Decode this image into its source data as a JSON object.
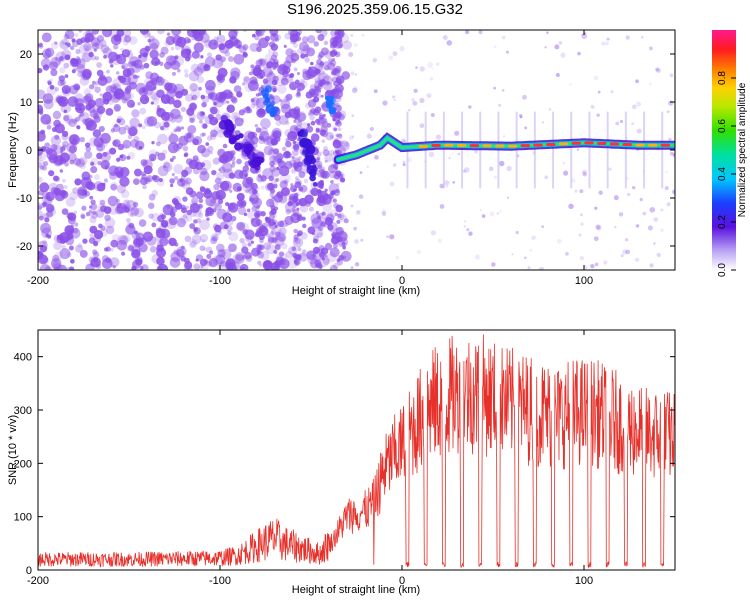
{
  "title": "S196.2025.359.06.15.G32",
  "colors": {
    "snr_line": "#e8302a",
    "axis": "#000000",
    "noise": "#8a4fe8",
    "background": "#ffffff"
  },
  "chart_data": [
    {
      "type": "heatmap",
      "title": "S196.2025.359.06.15.G32",
      "xlabel": "Height of straight line (km)",
      "ylabel": "Frequency (Hz)",
      "xlim": [
        -200,
        150
      ],
      "ylim": [
        -25,
        25
      ],
      "xticks": [
        -200,
        -100,
        0,
        100
      ],
      "yticks": [
        -20,
        -10,
        0,
        10,
        20
      ],
      "xtick_labels": [
        "-200",
        "-100",
        "0",
        "100"
      ],
      "ytick_labels": [
        "-20",
        "-10",
        "0",
        "10",
        "20"
      ],
      "colorbar": {
        "label": "Normalized spectral amplitude",
        "range": [
          0,
          1
        ],
        "ticks": [
          0.0,
          0.2,
          0.4,
          0.6,
          0.8
        ],
        "tick_labels": [
          "0.0",
          "0.2",
          "0.4",
          "0.6",
          "0.8"
        ]
      },
      "ridge": {
        "description": "strong signal track near 0 Hz",
        "points": [
          [
            -35,
            -2
          ],
          [
            -25,
            -1
          ],
          [
            -12,
            1
          ],
          [
            -8,
            2.5
          ],
          [
            0,
            0.5
          ],
          [
            20,
            1
          ],
          [
            60,
            0.8
          ],
          [
            100,
            1.5
          ],
          [
            130,
            1
          ],
          [
            150,
            1
          ]
        ]
      }
    },
    {
      "type": "line",
      "xlabel": "Height of straight line (km)",
      "ylabel": "SNR (10 * v/v)",
      "xlim": [
        -200,
        150
      ],
      "ylim": [
        0,
        450
      ],
      "xticks": [
        -200,
        -100,
        0,
        100
      ],
      "yticks": [
        0,
        100,
        200,
        300,
        400
      ],
      "xtick_labels": [
        "-200",
        "-100",
        "0",
        "100"
      ],
      "ytick_labels": [
        "0",
        "100",
        "200",
        "300",
        "400"
      ],
      "envelope": [
        [
          -200,
          20
        ],
        [
          -150,
          20
        ],
        [
          -100,
          22
        ],
        [
          -90,
          28
        ],
        [
          -80,
          45
        ],
        [
          -70,
          60
        ],
        [
          -65,
          50
        ],
        [
          -55,
          40
        ],
        [
          -45,
          30
        ],
        [
          -38,
          60
        ],
        [
          -30,
          110
        ],
        [
          -20,
          120
        ],
        [
          -15,
          140
        ],
        [
          -10,
          200
        ],
        [
          -5,
          230
        ],
        [
          0,
          250
        ],
        [
          5,
          280
        ],
        [
          15,
          330
        ],
        [
          25,
          350
        ],
        [
          35,
          360
        ],
        [
          45,
          355
        ],
        [
          55,
          340
        ],
        [
          65,
          330
        ],
        [
          75,
          320
        ],
        [
          85,
          310
        ],
        [
          95,
          320
        ],
        [
          105,
          320
        ],
        [
          115,
          305
        ],
        [
          125,
          290
        ],
        [
          135,
          275
        ],
        [
          150,
          270
        ]
      ],
      "dropouts": [
        3,
        13,
        23,
        33,
        43,
        53,
        63,
        73,
        83,
        93,
        103,
        113,
        123,
        133,
        143
      ]
    }
  ]
}
